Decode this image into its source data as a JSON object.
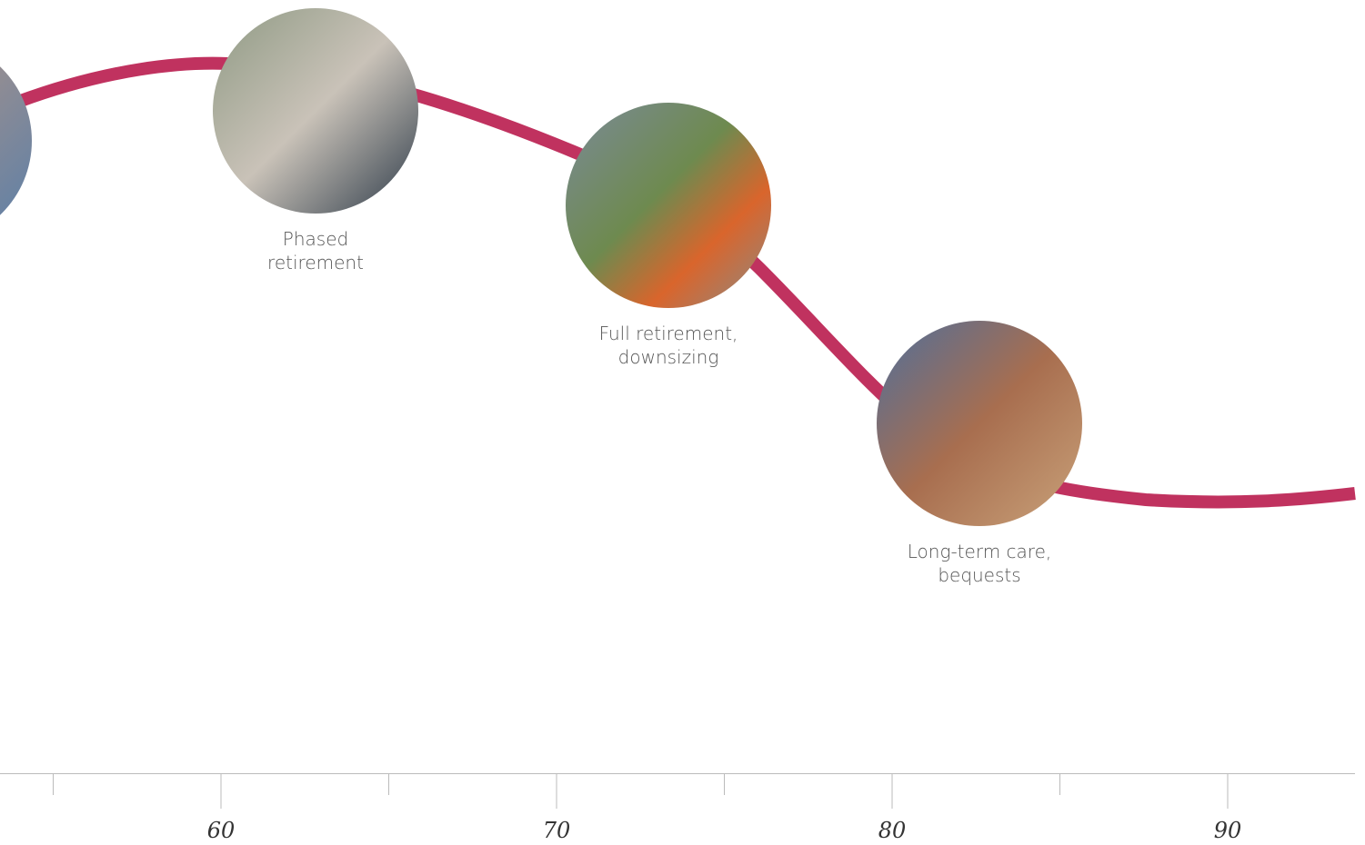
{
  "stages": [
    {
      "label_lines": [
        "Phased",
        "retirement"
      ]
    },
    {
      "label_lines": [
        "Full retirement,",
        "downsizing"
      ]
    },
    {
      "label_lines": [
        "Long-term care,",
        "bequests"
      ]
    }
  ],
  "axis": {
    "ticks": [
      60,
      70,
      80,
      90
    ]
  }
}
